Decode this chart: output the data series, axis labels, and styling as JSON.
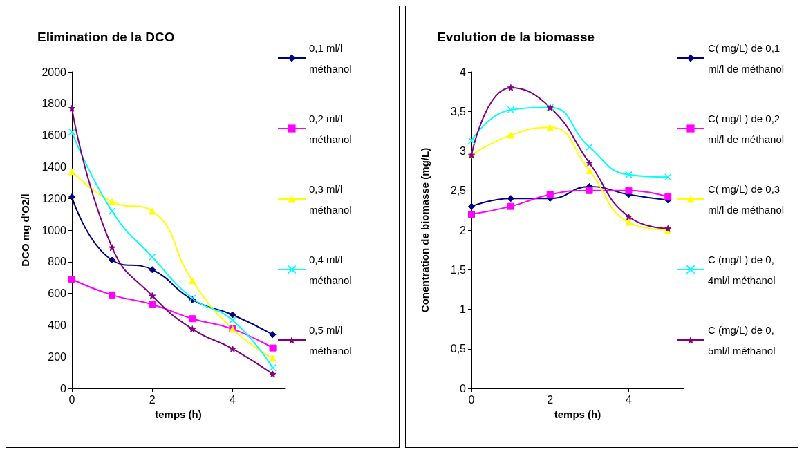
{
  "chart_data": [
    {
      "type": "line",
      "title": "Elimination de la DCO",
      "xlabel": "temps (h)",
      "ylabel": "DCO mg d'O2/l",
      "x": [
        0,
        1,
        2,
        3,
        4,
        5
      ],
      "xlim": [
        0,
        5.3
      ],
      "xticks": [
        0,
        2,
        4
      ],
      "ylim": [
        0,
        2000
      ],
      "yticks": [
        0,
        200,
        400,
        600,
        800,
        1000,
        1200,
        1400,
        1600,
        1800,
        2000
      ],
      "legend": "right",
      "grid": false,
      "series": [
        {
          "name": "0,1 ml/l méthanol",
          "color": "#000080",
          "marker": "diamond",
          "values": [
            1210,
            810,
            750,
            560,
            465,
            340
          ]
        },
        {
          "name": "0,2 ml/l méthanol",
          "color": "#ff00ff",
          "marker": "square",
          "values": [
            690,
            590,
            530,
            440,
            375,
            255
          ]
        },
        {
          "name": "0,3 ml/l méthanol",
          "color": "#ffff00",
          "marker": "triangle",
          "values": [
            1370,
            1180,
            1120,
            680,
            375,
            190
          ]
        },
        {
          "name": "0,4 ml/l méthanol",
          "color": "#00ffff",
          "marker": "cross",
          "values": [
            1620,
            1120,
            830,
            570,
            430,
            130
          ]
        },
        {
          "name": "0,5 ml/l méthanol",
          "color": "#800080",
          "marker": "star",
          "values": [
            1770,
            890,
            585,
            375,
            250,
            90
          ]
        }
      ]
    },
    {
      "type": "line",
      "title": "Evolution de la biomasse",
      "xlabel": "temps (h)",
      "ylabel": "Conentration de biomasse (mg/L)",
      "x": [
        0,
        1,
        2,
        3,
        4,
        5
      ],
      "xlim": [
        0,
        5.4
      ],
      "xticks": [
        0,
        2,
        4
      ],
      "ylim": [
        0,
        4
      ],
      "yticks": [
        0,
        {
          "value": 0.5,
          "label": "0,5"
        },
        1,
        {
          "value": 1.5,
          "label": "1,5"
        },
        2,
        {
          "value": 2.5,
          "label": "2,5"
        },
        3,
        {
          "value": 3.5,
          "label": "3,5"
        },
        4
      ],
      "legend": "right",
      "grid": false,
      "series": [
        {
          "name": "C( mg/L) de 0,1 ml/l de méthanol",
          "color": "#000080",
          "marker": "diamond",
          "values": [
            2.3,
            2.4,
            2.4,
            2.55,
            2.45,
            2.38
          ]
        },
        {
          "name": "C( mg/L) de 0,2 ml/l de méthanol",
          "color": "#ff00ff",
          "marker": "square",
          "values": [
            2.2,
            2.3,
            2.45,
            2.5,
            2.5,
            2.42
          ]
        },
        {
          "name": "C( mg/L) de 0,3 ml/l de méthanol",
          "color": "#ffff00",
          "marker": "triangle",
          "values": [
            2.95,
            3.2,
            3.3,
            2.75,
            2.1,
            2.0
          ]
        },
        {
          "name": "C (mg/L) de 0,4ml/l méthanol",
          "color": "#00ffff",
          "marker": "cross",
          "values": [
            3.13,
            3.52,
            3.55,
            3.05,
            2.7,
            2.67
          ]
        },
        {
          "name": "C (mg/L) de 0,5ml/l méthanol",
          "color": "#800080",
          "marker": "star",
          "values": [
            2.95,
            3.8,
            3.55,
            2.85,
            2.17,
            2.02
          ]
        }
      ]
    }
  ]
}
